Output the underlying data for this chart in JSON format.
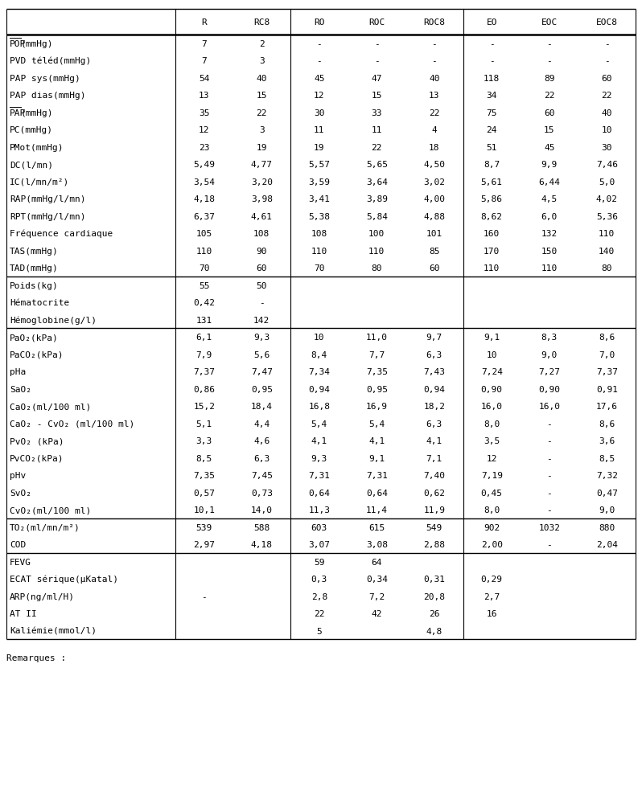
{
  "columns": [
    "",
    "R",
    "RC8",
    "RO",
    "ROC",
    "ROC8",
    "EO",
    "EOC",
    "EOC8"
  ],
  "rows_s1": [
    [
      "POP(mmHg)",
      "7",
      "2",
      "-",
      "-",
      "-",
      "-",
      "-",
      "-"
    ],
    [
      "PVD téléd(mmHg)",
      "7",
      "3",
      "-",
      "-",
      "-",
      "-",
      "-",
      "-"
    ],
    [
      "PAP sys(mmHg)",
      "54",
      "40",
      "45",
      "47",
      "40",
      "118",
      "89",
      "60"
    ],
    [
      "PAP dias(mmHg)",
      "13",
      "15",
      "12",
      "15",
      "13",
      "34",
      "22",
      "22"
    ],
    [
      "PAP(mmHg)",
      "35",
      "22",
      "30",
      "33",
      "22",
      "75",
      "60",
      "40"
    ],
    [
      "PC(mmHg)",
      "12",
      "3",
      "11",
      "11",
      "4",
      "24",
      "15",
      "10"
    ],
    [
      "PMot(mmHg)",
      "23",
      "19",
      "19",
      "22",
      "18",
      "51",
      "45",
      "30"
    ],
    [
      "DC(l/mn)",
      "5,49",
      "4,77",
      "5,57",
      "5,65",
      "4,50",
      "8,7",
      "9,9",
      "7,46"
    ],
    [
      "IC(l/mn/m²)",
      "3,54",
      "3,20",
      "3,59",
      "3,64",
      "3,02",
      "5,61",
      "6,44",
      "5,0"
    ],
    [
      "RAP(mmHg/l/mn)",
      "4,18",
      "3,98",
      "3,41",
      "3,89",
      "4,00",
      "5,86",
      "4,5",
      "4,02"
    ],
    [
      "RPT(mmHg/l/mn)",
      "6,37",
      "4,61",
      "5,38",
      "5,84",
      "4,88",
      "8,62",
      "6,0",
      "5,36"
    ],
    [
      "Fréquence cardiaque",
      "105",
      "108",
      "108",
      "100",
      "101",
      "160",
      "132",
      "110"
    ],
    [
      "TAS(mmHg)",
      "110",
      "90",
      "110",
      "110",
      "85",
      "170",
      "150",
      "140"
    ],
    [
      "TAD(mmHg)",
      "70",
      "60",
      "70",
      "80",
      "60",
      "110",
      "110",
      "80"
    ]
  ],
  "overline_rows_s1": [
    0,
    4
  ],
  "rows_s2": [
    [
      "Poids(kg)",
      "55",
      "50",
      "",
      "",
      "",
      "",
      "",
      ""
    ],
    [
      "Hématocrite",
      "0,42",
      "-",
      "",
      "",
      "",
      "",
      "",
      ""
    ],
    [
      "Hémoglobine(g/l)",
      "131",
      "142",
      "",
      "",
      "",
      "",
      "",
      ""
    ]
  ],
  "rows_s3": [
    [
      "PaO₂(kPa)",
      "6,1",
      "9,3",
      "10",
      "11,0",
      "9,7",
      "9,1",
      "8,3",
      "8,6"
    ],
    [
      "PaCO₂(kPa)",
      "7,9",
      "5,6",
      "8,4",
      "7,7",
      "6,3",
      "10",
      "9,0",
      "7,0"
    ],
    [
      "pHa",
      "7,37",
      "7,47",
      "7,34",
      "7,35",
      "7,43",
      "7,24",
      "7,27",
      "7,37"
    ],
    [
      "SaO₂",
      "0,86",
      "0,95",
      "0,94",
      "0,95",
      "0,94",
      "0,90",
      "0,90",
      "0,91"
    ],
    [
      "CaO₂(ml/100 ml)",
      "15,2",
      "18,4",
      "16,8",
      "16,9",
      "18,2",
      "16,0",
      "16,0",
      "17,6"
    ],
    [
      "CaO₂ - CvO₂ (ml/100 ml)",
      "5,1",
      "4,4",
      "5,4",
      "5,4",
      "6,3",
      "8,0",
      "-",
      "8,6"
    ],
    [
      "PvO₂ (kPa)",
      "3,3",
      "4,6",
      "4,1",
      "4,1",
      "4,1",
      "3,5",
      "-",
      "3,6"
    ],
    [
      "PvCO₂(kPa)",
      "8,5",
      "6,3",
      "9,3",
      "9,1",
      "7,1",
      "12",
      "-",
      "8,5"
    ],
    [
      "pHv",
      "7,35",
      "7,45",
      "7,31",
      "7,31",
      "7,40",
      "7,19",
      "-",
      "7,32"
    ],
    [
      "SvO₂",
      "0,57",
      "0,73",
      "0,64",
      "0,64",
      "0,62",
      "0,45",
      "-",
      "0,47"
    ],
    [
      "CvO₂(ml/100 ml)",
      "10,1",
      "14,0",
      "11,3",
      "11,4",
      "11,9",
      "8,0",
      "-",
      "9,0"
    ]
  ],
  "rows_s4": [
    [
      "TO₂(ml/mn/m²)",
      "539",
      "588",
      "603",
      "615",
      "549",
      "902",
      "1032",
      "880"
    ],
    [
      "COD",
      "2,97",
      "4,18",
      "3,07",
      "3,08",
      "2,88",
      "2,00",
      "-",
      "2,04"
    ]
  ],
  "rows_s5": [
    [
      "FEVG",
      "",
      "",
      "59",
      "64",
      "",
      "",
      "",
      ""
    ],
    [
      "ECAT sérique(µKatal)",
      "",
      "",
      "0,3",
      "0,34",
      "0,31",
      "0,29",
      "",
      ""
    ],
    [
      "ARP(ng/ml/H)",
      "-",
      "",
      "2,8",
      "7,2",
      "20,8",
      "2,7",
      "",
      ""
    ],
    [
      "AT II",
      "",
      "",
      "22",
      "42",
      "26",
      "16",
      "",
      ""
    ],
    [
      "Kaliémie(mmol/l)",
      "",
      "",
      "5",
      "",
      "4,8",
      "",
      "",
      ""
    ]
  ],
  "footer": "Remarques :",
  "bg_color": "#ffffff",
  "font_size": 8.0
}
